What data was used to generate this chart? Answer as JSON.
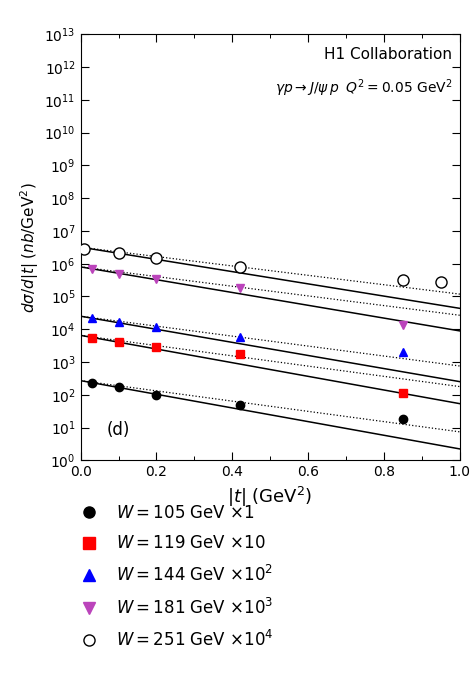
{
  "title_line1": "H1 Collaboration",
  "title_line2": "$\\gamma p{\\rightarrow}J/\\psi\\, p \\;\\; Q^2 = 0.05$ GeV$^2$",
  "xlabel": "$|t|$ (GeV$^2$)",
  "ylabel": "$d\\sigma/d|t|\\;(nb/{\\rm GeV}^2)$",
  "panel_label": "(d)",
  "xlim": [
    0,
    1.0
  ],
  "ylim_log": [
    1,
    10000000000000.0
  ],
  "series": [
    {
      "label": "$W = 105$ GeV ${\\times}1$",
      "color": "black",
      "marker": "o",
      "markerfacecolor": "black",
      "markersize": 6,
      "data_x": [
        0.03,
        0.1,
        0.2,
        0.42,
        0.85
      ],
      "data_y": [
        230,
        170,
        100,
        50,
        18
      ],
      "A_solid": 270,
      "b_solid": 4.8,
      "A_dot": 270,
      "b_dot": 3.6
    },
    {
      "label": "$W = 119$ GeV ${\\times}10$",
      "color": "red",
      "marker": "s",
      "markerfacecolor": "red",
      "markersize": 6,
      "data_x": [
        0.03,
        0.1,
        0.2,
        0.42,
        0.85
      ],
      "data_y": [
        5500,
        4000,
        2800,
        1800,
        110
      ],
      "A_solid": 6500,
      "b_solid": 4.8,
      "A_dot": 6500,
      "b_dot": 3.6
    },
    {
      "label": "$W = 144$ GeV ${\\times}10^2$",
      "color": "blue",
      "marker": "^",
      "markerfacecolor": "blue",
      "markersize": 6,
      "data_x": [
        0.03,
        0.1,
        0.2,
        0.42,
        0.85
      ],
      "data_y": [
        22000,
        17000,
        12000,
        6000,
        2000
      ],
      "A_solid": 25000,
      "b_solid": 4.6,
      "A_dot": 25000,
      "b_dot": 3.5
    },
    {
      "label": "$W = 181$ GeV ${\\times}10^3$",
      "color": "#bb44bb",
      "marker": "v",
      "markerfacecolor": "#bb44bb",
      "markersize": 6,
      "data_x": [
        0.03,
        0.1,
        0.2,
        0.42,
        0.85
      ],
      "data_y": [
        700000,
        500000,
        350000,
        180000,
        13000
      ],
      "A_solid": 800000,
      "b_solid": 4.5,
      "A_dot": 800000,
      "b_dot": 3.4
    },
    {
      "label": "$W = 251$ GeV ${\\times}10^4$",
      "color": "black",
      "marker": "o",
      "markerfacecolor": "white",
      "markersize": 8,
      "data_x": [
        0.01,
        0.1,
        0.2,
        0.42,
        0.85,
        0.95
      ],
      "data_y": [
        2800000,
        2100000,
        1500000,
        800000,
        320000,
        280000
      ],
      "A_solid": 3200000,
      "b_solid": 4.3,
      "A_dot": 3200000,
      "b_dot": 3.3
    }
  ]
}
